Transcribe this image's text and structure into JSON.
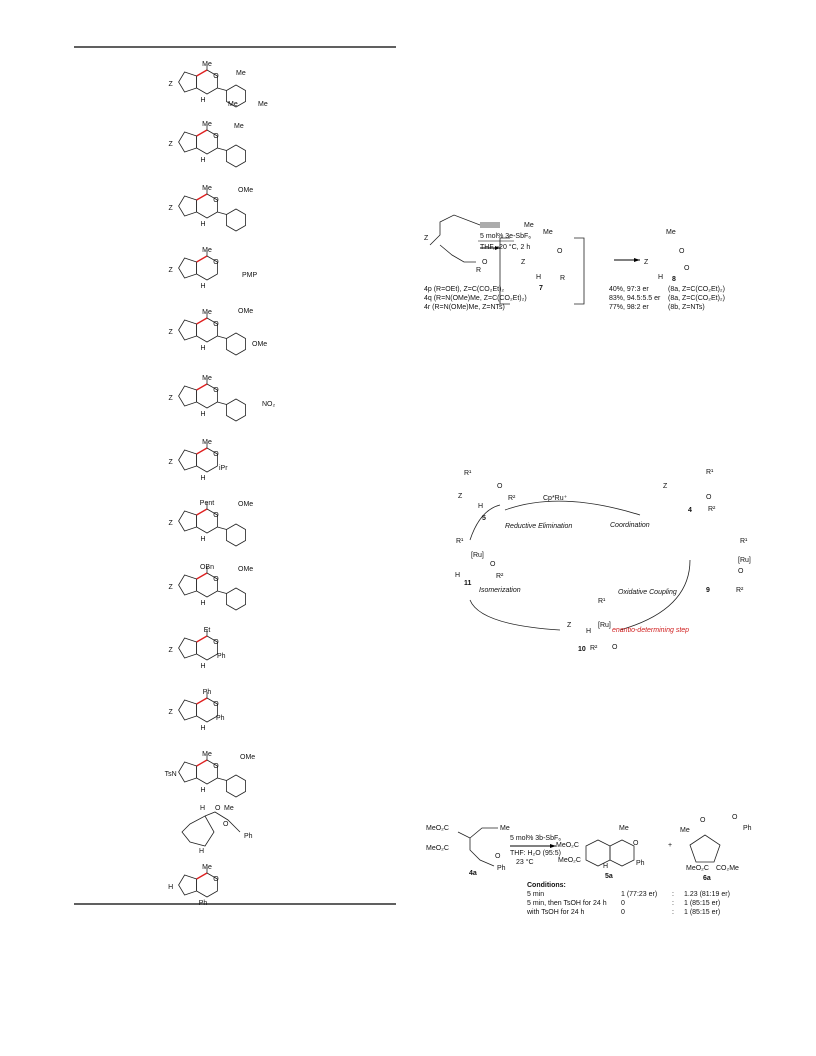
{
  "table": {
    "rows": [
      {
        "labels": [
          "Me",
          "O",
          "Z",
          "H",
          "Me",
          "Me",
          "Me"
        ]
      },
      {
        "labels": [
          "Me",
          "O",
          "Z",
          "H",
          "Me"
        ]
      },
      {
        "labels": [
          "Me",
          "O",
          "Z",
          "H",
          "OMe"
        ]
      },
      {
        "labels": [
          "Me",
          "O",
          "Z",
          "H",
          "PMP"
        ]
      },
      {
        "labels": [
          "Me",
          "O",
          "Z",
          "H",
          "OMe",
          "OMe"
        ]
      },
      {
        "labels": [
          "Me",
          "O",
          "Z",
          "H",
          "NO₂"
        ]
      },
      {
        "labels": [
          "Me",
          "O",
          "Z",
          "H",
          "iPr"
        ]
      },
      {
        "labels": [
          "Pent",
          "O",
          "Z",
          "H",
          "OMe"
        ]
      },
      {
        "labels": [
          "OBn",
          "O",
          "Z",
          "H",
          "OMe"
        ]
      },
      {
        "labels": [
          "Et",
          "O",
          "Z",
          "H",
          "Ph"
        ]
      },
      {
        "labels": [
          "Ph",
          "O",
          "Z",
          "H",
          "Ph"
        ]
      },
      {
        "labels": [
          "Me",
          "O",
          "TsN",
          "H",
          "OMe"
        ]
      },
      {
        "labels": [
          "H",
          "O",
          "Me",
          "O",
          "Ph",
          "H"
        ]
      },
      {
        "labels": [
          "Me",
          "O",
          "H",
          "Ph"
        ]
      }
    ]
  },
  "scheme1": {
    "texts": [
      "Me",
      "Z",
      "O",
      "R",
      "5 mol% 3e-SbF₆",
      "THF, -20 °C, 2 h",
      "Me",
      "Z",
      "O",
      "H",
      "R",
      "7",
      "Me",
      "Z",
      "O",
      "H",
      "O",
      "8",
      "4p (R=OEt), Z=C(CO₂Et)₂",
      "4q (R=N(OMe)Me, Z=C(CO₂Et)₂)",
      "4r (R=N(OMe)Me, Z=NTs)",
      "40%, 97:3 er",
      "83%, 94.5:5.5 er",
      "77%, 98:2 er",
      "(8a, Z=C(CO₂Et)₂)",
      "(8a, Z=C(CO₂Et)₂)",
      "(8b, Z=NTs)"
    ]
  },
  "cycle": {
    "texts": [
      "R¹",
      "Z",
      "O",
      "R²",
      "H",
      "5",
      "Cp*Ru⁺",
      "R¹",
      "Z",
      "O",
      "R²",
      "4",
      "Coordination",
      "R¹",
      "[Ru]",
      "O",
      "R²",
      "9",
      "Oxidative Coupling",
      "enantio-determining step",
      "R¹",
      "[Ru]",
      "Z",
      "O",
      "R²",
      "H",
      "10",
      "Isomerization",
      "R¹",
      "[Ru]",
      "O",
      "R²",
      "H",
      "11",
      "Reductive Elimination"
    ]
  },
  "scheme2": {
    "texts": [
      "MeO₂C",
      "MeO₂C",
      "Me",
      "O",
      "Ph",
      "4a",
      "5 mol% 3b-SbF₆",
      "THF: H₂O (95:5)",
      "23 °C",
      "Me",
      "MeO₂C",
      "MeO₂C",
      "O",
      "Ph",
      "H",
      "5a",
      "+",
      "Me",
      "O",
      "O",
      "Ph",
      "MeO₂C",
      "CO₂Me",
      "6a",
      "Conditions:",
      "5 min",
      "5 min, then TsOH for 24 h",
      "with TsOH for 24 h",
      "1 (77:23 er)",
      "0",
      "0",
      ":",
      ":",
      ":",
      "1.23 (81:19 er)",
      "1 (85:15 er)",
      "1 (85:15 er)"
    ]
  }
}
